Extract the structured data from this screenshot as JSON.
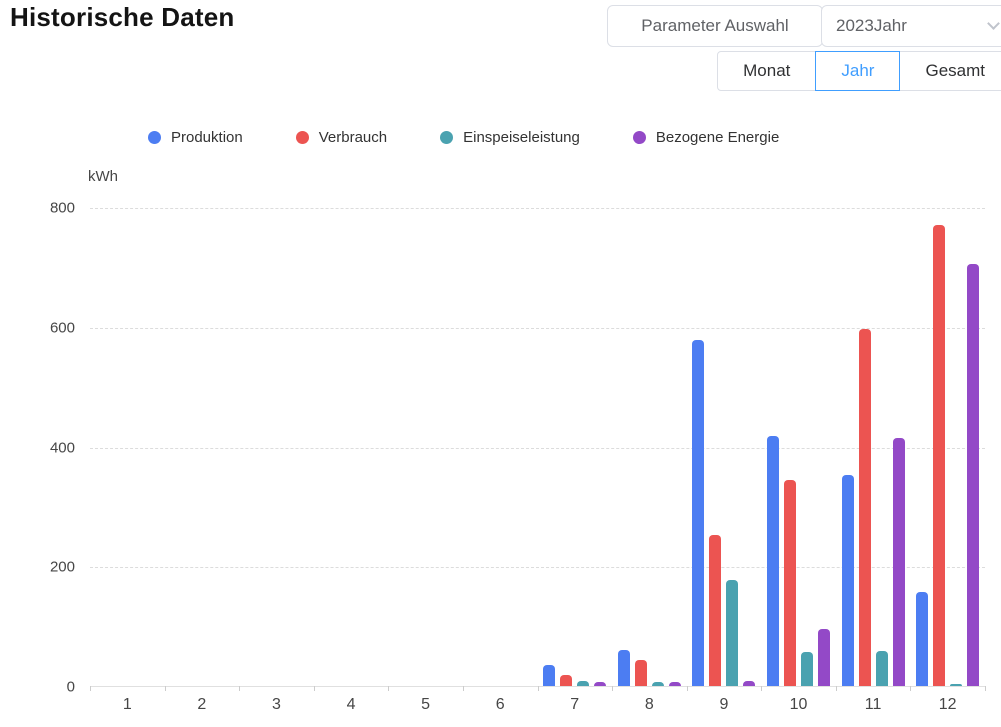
{
  "page": {
    "title": "Historische Daten"
  },
  "controls": {
    "parameter_button": "Parameter Auswahl",
    "year_select": {
      "value": "2023Jahr",
      "icon": "chevron-down-icon"
    },
    "range_tabs": [
      {
        "label": "Monat",
        "active": false
      },
      {
        "label": "Jahr",
        "active": true
      },
      {
        "label": "Gesamt",
        "active": false
      }
    ]
  },
  "chart_data": {
    "type": "bar",
    "title": "",
    "unit_label": "kWh",
    "xlabel": "",
    "ylabel": "kWh",
    "ylim": [
      0,
      800
    ],
    "yticks": [
      0,
      200,
      400,
      600,
      800
    ],
    "grid": "dashed-horizontal",
    "legend_position": "top",
    "categories": [
      "1",
      "2",
      "3",
      "4",
      "5",
      "6",
      "7",
      "8",
      "9",
      "10",
      "11",
      "12"
    ],
    "series": [
      {
        "name": "Produktion",
        "color": "#4c7df2",
        "values": [
          0,
          0,
          0,
          0,
          0,
          0,
          35,
          60,
          578,
          418,
          352,
          157
        ]
      },
      {
        "name": "Verbrauch",
        "color": "#ec5451",
        "values": [
          0,
          0,
          0,
          0,
          0,
          0,
          18,
          43,
          252,
          344,
          597,
          770
        ]
      },
      {
        "name": "Einspeiseleistung",
        "color": "#4aa2b0",
        "values": [
          0,
          0,
          0,
          0,
          0,
          0,
          9,
          6,
          177,
          57,
          58,
          4
        ]
      },
      {
        "name": "Bezogene Energie",
        "color": "#9349c7",
        "values": [
          0,
          0,
          0,
          0,
          0,
          0,
          6,
          6,
          8,
          96,
          415,
          705
        ]
      }
    ]
  }
}
